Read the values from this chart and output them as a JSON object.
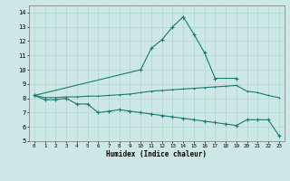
{
  "xlabel": "Humidex (Indice chaleur)",
  "background_color": "#cde8e4",
  "line_color": "#1a7a6e",
  "grid_color": "#b0d8d0",
  "x_peak": [
    0,
    10,
    11,
    12,
    13,
    14,
    15,
    16,
    17,
    19
  ],
  "y_peak": [
    8.2,
    10.0,
    11.5,
    12.1,
    13.0,
    13.7,
    12.5,
    11.2,
    9.4,
    9.4
  ],
  "x_mid": [
    0,
    1,
    2,
    3,
    4,
    5,
    6,
    7,
    8,
    9,
    10,
    11,
    12,
    13,
    14,
    15,
    16,
    17,
    18,
    19,
    20,
    21,
    22,
    23
  ],
  "y_mid": [
    8.2,
    8.05,
    8.05,
    8.1,
    8.1,
    8.15,
    8.15,
    8.2,
    8.25,
    8.3,
    8.4,
    8.5,
    8.55,
    8.6,
    8.65,
    8.7,
    8.75,
    8.8,
    8.85,
    8.9,
    8.5,
    8.4,
    8.2,
    8.05
  ],
  "x_bot": [
    0,
    1,
    2,
    3,
    4,
    5,
    6,
    7,
    8,
    9,
    10,
    11,
    12,
    13,
    14,
    15,
    16,
    17,
    18,
    19,
    20,
    21,
    22,
    23
  ],
  "y_bot": [
    8.2,
    7.9,
    7.9,
    8.0,
    7.6,
    7.6,
    7.0,
    7.1,
    7.2,
    7.1,
    7.0,
    6.9,
    6.8,
    6.7,
    6.6,
    6.5,
    6.4,
    6.3,
    6.2,
    6.1,
    6.5,
    6.5,
    6.5,
    5.4
  ],
  "ylim": [
    5,
    14.5
  ],
  "xlim": [
    -0.5,
    23.5
  ],
  "yticks": [
    5,
    6,
    7,
    8,
    9,
    10,
    11,
    12,
    13,
    14
  ],
  "xticks": [
    0,
    1,
    2,
    3,
    4,
    5,
    6,
    7,
    8,
    9,
    10,
    11,
    12,
    13,
    14,
    15,
    16,
    17,
    18,
    19,
    20,
    21,
    22,
    23
  ]
}
